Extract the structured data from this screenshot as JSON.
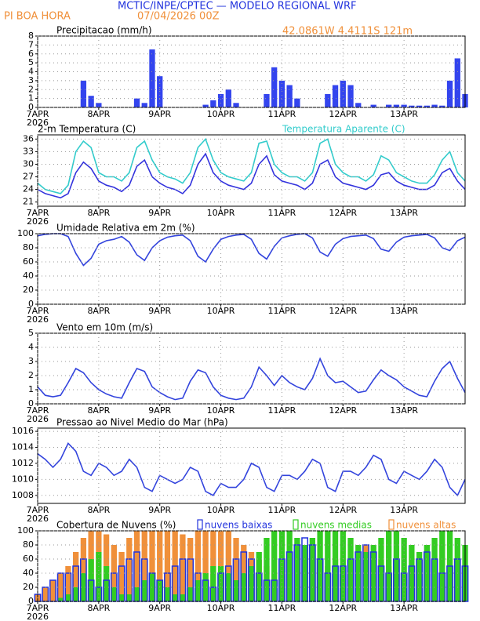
{
  "header": {
    "title": "MCTIC/INPE/CPTEC — MODELO REGIONAL WRF",
    "location": "PI BOA HORA",
    "date": "07/04/2026 00Z",
    "coords": "42.0861W 4.4111S 121m"
  },
  "chart_data": [
    {
      "type": "bar",
      "title": "Precipitacao (mm/h)",
      "year": "2026",
      "grid": true,
      "x": [
        0,
        3,
        6,
        9,
        12,
        15,
        18,
        21,
        24,
        27,
        30,
        33,
        36,
        39,
        42,
        45,
        48,
        51,
        54,
        57,
        60,
        63,
        66,
        69,
        72,
        75,
        78,
        81,
        84,
        87,
        90,
        93,
        96,
        99,
        102,
        105,
        108,
        111,
        114,
        117,
        120,
        123,
        126,
        129,
        132,
        135,
        138,
        141,
        144,
        147,
        150,
        153,
        156,
        159,
        162,
        165,
        168
      ],
      "xlim": [
        0,
        168
      ],
      "xticks": [
        {
          "value": 0,
          "label": "7APR"
        },
        {
          "value": 24,
          "label": "8APR"
        },
        {
          "value": 48,
          "label": "9APR"
        },
        {
          "value": 72,
          "label": "10APR"
        },
        {
          "value": 96,
          "label": "11APR"
        },
        {
          "value": 120,
          "label": "12APR"
        },
        {
          "value": 144,
          "label": "13APR"
        }
      ],
      "ylim": [
        0,
        8
      ],
      "yticks": [
        0,
        1,
        2,
        3,
        4,
        5,
        6,
        7,
        8
      ],
      "series": [
        {
          "color": "#3344ee",
          "values": [
            0,
            0,
            0,
            0,
            0,
            0,
            3,
            1.3,
            0.5,
            0,
            0,
            0,
            0,
            1,
            0.5,
            6.5,
            3.5,
            0,
            0,
            0,
            0,
            0,
            0.3,
            0.8,
            1.5,
            2,
            0.5,
            0,
            0,
            0,
            1.5,
            4.5,
            3,
            2.5,
            1,
            0,
            0,
            0,
            1.5,
            2.5,
            3,
            2.5,
            0.5,
            0,
            0.3,
            0,
            0.3,
            0.3,
            0.3,
            0.2,
            0.2,
            0.2,
            0.3,
            0.2,
            3,
            5.5,
            1.5
          ]
        }
      ]
    },
    {
      "type": "line",
      "title": "2-m Temperatura (C)",
      "year": "2026",
      "grid": true,
      "x": [
        0,
        3,
        6,
        9,
        12,
        15,
        18,
        21,
        24,
        27,
        30,
        33,
        36,
        39,
        42,
        45,
        48,
        51,
        54,
        57,
        60,
        63,
        66,
        69,
        72,
        75,
        78,
        81,
        84,
        87,
        90,
        93,
        96,
        99,
        102,
        105,
        108,
        111,
        114,
        117,
        120,
        123,
        126,
        129,
        132,
        135,
        138,
        141,
        144,
        147,
        150,
        153,
        156,
        159,
        162,
        165,
        168
      ],
      "xlim": [
        0,
        168
      ],
      "xticks": [
        {
          "value": 0,
          "label": "7APR"
        },
        {
          "value": 24,
          "label": "8APR"
        },
        {
          "value": 48,
          "label": "9APR"
        },
        {
          "value": 72,
          "label": "10APR"
        },
        {
          "value": 96,
          "label": "11APR"
        },
        {
          "value": 120,
          "label": "12APR"
        },
        {
          "value": 144,
          "label": "13APR"
        }
      ],
      "ylim": [
        20,
        37
      ],
      "yticks": [
        21,
        24,
        27,
        30,
        33,
        36
      ],
      "series": [
        {
          "color": "#3333dd",
          "values": [
            24,
            23,
            22.5,
            22,
            23,
            28,
            30.5,
            29,
            26,
            25,
            24.5,
            23.5,
            25,
            29.5,
            31,
            27,
            25.5,
            24.5,
            24,
            23,
            25,
            30,
            32.5,
            28,
            26,
            25,
            24.5,
            24,
            25.5,
            30,
            32,
            27.5,
            26,
            25.5,
            25,
            24,
            25.5,
            30,
            31,
            27,
            25.5,
            25,
            24.5,
            24,
            25,
            27.5,
            28,
            26,
            25,
            24.5,
            24,
            24,
            25,
            28,
            29,
            26,
            24
          ]
        },
        {
          "name": "Temperatura Aparente (C)",
          "color": "#33cccc",
          "values": [
            25.5,
            24,
            23.5,
            23,
            25,
            33,
            35.5,
            34,
            28,
            27,
            27,
            26,
            28,
            34,
            35.5,
            31,
            28,
            27,
            26.5,
            25.5,
            28,
            34,
            36,
            31,
            28,
            27,
            26.5,
            26,
            28,
            35,
            35.5,
            30,
            28,
            27,
            27,
            26,
            28,
            35,
            36,
            30,
            28,
            27,
            27,
            26,
            27.5,
            32,
            31,
            28,
            27,
            26,
            25.5,
            25.5,
            27.5,
            31,
            33,
            28,
            26
          ]
        }
      ]
    },
    {
      "type": "line",
      "title": "Umidade Relativa em 2m (%)",
      "year": "2026",
      "grid": true,
      "x": [
        0,
        3,
        6,
        9,
        12,
        15,
        18,
        21,
        24,
        27,
        30,
        33,
        36,
        39,
        42,
        45,
        48,
        51,
        54,
        57,
        60,
        63,
        66,
        69,
        72,
        75,
        78,
        81,
        84,
        87,
        90,
        93,
        96,
        99,
        102,
        105,
        108,
        111,
        114,
        117,
        120,
        123,
        126,
        129,
        132,
        135,
        138,
        141,
        144,
        147,
        150,
        153,
        156,
        159,
        162,
        165,
        168
      ],
      "xlim": [
        0,
        168
      ],
      "xticks": [
        {
          "value": 0,
          "label": "7APR"
        },
        {
          "value": 24,
          "label": "8APR"
        },
        {
          "value": 48,
          "label": "9APR"
        },
        {
          "value": 72,
          "label": "10APR"
        },
        {
          "value": 96,
          "label": "11APR"
        },
        {
          "value": 120,
          "label": "12APR"
        },
        {
          "value": 144,
          "label": "13APR"
        }
      ],
      "ylim": [
        0,
        100
      ],
      "yticks": [
        0,
        20,
        40,
        60,
        80,
        100
      ],
      "series": [
        {
          "color": "#3344dd",
          "values": [
            97,
            99,
            100,
            100,
            96,
            72,
            55,
            65,
            85,
            90,
            92,
            96,
            88,
            70,
            62,
            80,
            90,
            95,
            97,
            98,
            90,
            68,
            60,
            78,
            92,
            96,
            98,
            99,
            92,
            72,
            64,
            82,
            94,
            97,
            99,
            100,
            94,
            74,
            68,
            85,
            93,
            96,
            97,
            98,
            93,
            78,
            75,
            88,
            95,
            97,
            98,
            99,
            94,
            80,
            76,
            90,
            95
          ]
        }
      ]
    },
    {
      "type": "line",
      "title": "Vento em 10m (m/s)",
      "year": "2026",
      "grid": true,
      "x": [
        0,
        3,
        6,
        9,
        12,
        15,
        18,
        21,
        24,
        27,
        30,
        33,
        36,
        39,
        42,
        45,
        48,
        51,
        54,
        57,
        60,
        63,
        66,
        69,
        72,
        75,
        78,
        81,
        84,
        87,
        90,
        93,
        96,
        99,
        102,
        105,
        108,
        111,
        114,
        117,
        120,
        123,
        126,
        129,
        132,
        135,
        138,
        141,
        144,
        147,
        150,
        153,
        156,
        159,
        162,
        165,
        168
      ],
      "xlim": [
        0,
        168
      ],
      "xticks": [
        {
          "value": 0,
          "label": "7APR"
        },
        {
          "value": 24,
          "label": "8APR"
        },
        {
          "value": 48,
          "label": "9APR"
        },
        {
          "value": 72,
          "label": "10APR"
        },
        {
          "value": 96,
          "label": "11APR"
        },
        {
          "value": 120,
          "label": "12APR"
        },
        {
          "value": 144,
          "label": "13APR"
        }
      ],
      "ylim": [
        0,
        5
      ],
      "yticks": [
        0,
        1,
        2,
        3,
        4,
        5
      ],
      "series": [
        {
          "color": "#3344dd",
          "values": [
            1.2,
            0.6,
            0.5,
            0.6,
            1.5,
            2.5,
            2.2,
            1.5,
            1.0,
            0.7,
            0.5,
            0.4,
            1.5,
            2.5,
            2.3,
            1.2,
            0.8,
            0.5,
            0.3,
            0.4,
            1.6,
            2.4,
            2.2,
            1.2,
            0.6,
            0.4,
            0.3,
            0.4,
            1.2,
            2.6,
            2.0,
            1.3,
            2.0,
            1.5,
            1.2,
            1.0,
            1.8,
            3.2,
            2.0,
            1.5,
            1.6,
            1.2,
            0.8,
            0.9,
            1.7,
            2.4,
            2.0,
            1.7,
            1.2,
            0.9,
            0.6,
            0.5,
            1.6,
            2.5,
            3.0,
            1.8,
            0.8
          ]
        }
      ]
    },
    {
      "type": "line",
      "title": "Pressao ao Nivel Medio do Mar (hPa)",
      "year": "2026",
      "grid": true,
      "x": [
        0,
        3,
        6,
        9,
        12,
        15,
        18,
        21,
        24,
        27,
        30,
        33,
        36,
        39,
        42,
        45,
        48,
        51,
        54,
        57,
        60,
        63,
        66,
        69,
        72,
        75,
        78,
        81,
        84,
        87,
        90,
        93,
        96,
        99,
        102,
        105,
        108,
        111,
        114,
        117,
        120,
        123,
        126,
        129,
        132,
        135,
        138,
        141,
        144,
        147,
        150,
        153,
        156,
        159,
        162,
        165,
        168
      ],
      "xlim": [
        0,
        168
      ],
      "xticks": [
        {
          "value": 0,
          "label": "7APR"
        },
        {
          "value": 24,
          "label": "8APR"
        },
        {
          "value": 48,
          "label": "9APR"
        },
        {
          "value": 72,
          "label": "10APR"
        },
        {
          "value": 96,
          "label": "11APR"
        },
        {
          "value": 120,
          "label": "12APR"
        },
        {
          "value": 144,
          "label": "13APR"
        }
      ],
      "ylim": [
        1007,
        1016.4
      ],
      "yticks": [
        1008,
        1010,
        1012,
        1014,
        1016
      ],
      "series": [
        {
          "color": "#3344dd",
          "values": [
            1013.2,
            1012.5,
            1011.5,
            1012.5,
            1014.5,
            1013.5,
            1011,
            1010.5,
            1012,
            1011.5,
            1010.5,
            1011,
            1012.5,
            1011.5,
            1009,
            1008.5,
            1010.5,
            1010,
            1009.5,
            1010,
            1011.5,
            1011,
            1008.5,
            1008,
            1009.5,
            1009,
            1009,
            1010,
            1012,
            1011.5,
            1009,
            1008.5,
            1010.5,
            1010.5,
            1010,
            1011,
            1012.5,
            1012,
            1009,
            1008.5,
            1011,
            1011,
            1010.5,
            1011.5,
            1013,
            1012.5,
            1010,
            1009.5,
            1011,
            1010.5,
            1010,
            1011,
            1012.5,
            1011.5,
            1009,
            1008,
            1010
          ]
        }
      ]
    },
    {
      "type": "bar",
      "title": "Cobertura de Nuvens (%)",
      "year": "2026",
      "grid": true,
      "x": [
        0,
        3,
        6,
        9,
        12,
        15,
        18,
        21,
        24,
        27,
        30,
        33,
        36,
        39,
        42,
        45,
        48,
        51,
        54,
        57,
        60,
        63,
        66,
        69,
        72,
        75,
        78,
        81,
        84,
        87,
        90,
        93,
        96,
        99,
        102,
        105,
        108,
        111,
        114,
        117,
        120,
        123,
        126,
        129,
        132,
        135,
        138,
        141,
        144,
        147,
        150,
        153,
        156,
        159,
        162,
        165,
        168
      ],
      "xlim": [
        0,
        168
      ],
      "xticks": [
        {
          "value": 0,
          "label": "7APR"
        },
        {
          "value": 24,
          "label": "8APR"
        },
        {
          "value": 48,
          "label": "9APR"
        },
        {
          "value": 72,
          "label": "10APR"
        },
        {
          "value": 96,
          "label": "11APR"
        },
        {
          "value": 120,
          "label": "12APR"
        },
        {
          "value": 144,
          "label": "13APR"
        }
      ],
      "ylim": [
        0,
        100
      ],
      "yticks": [
        0,
        20,
        40,
        60,
        80,
        100
      ],
      "series": [
        {
          "name": "nuvens baixas",
          "color": "#2233dd",
          "fill": false,
          "values": [
            10,
            20,
            30,
            40,
            40,
            50,
            60,
            30,
            20,
            30,
            40,
            50,
            60,
            70,
            60,
            40,
            30,
            40,
            50,
            60,
            60,
            40,
            30,
            20,
            40,
            50,
            60,
            70,
            60,
            40,
            30,
            30,
            60,
            70,
            80,
            90,
            80,
            60,
            40,
            50,
            50,
            60,
            70,
            80,
            70,
            50,
            40,
            60,
            40,
            50,
            60,
            70,
            60,
            40,
            50,
            60,
            50
          ]
        },
        {
          "name": "nuvens medias",
          "color": "#33cc22",
          "fill": true,
          "values": [
            0,
            0,
            0,
            5,
            10,
            20,
            40,
            60,
            70,
            50,
            20,
            10,
            10,
            20,
            30,
            40,
            30,
            20,
            10,
            10,
            20,
            30,
            40,
            50,
            50,
            40,
            30,
            40,
            50,
            70,
            90,
            100,
            100,
            100,
            90,
            80,
            90,
            100,
            100,
            100,
            100,
            90,
            80,
            70,
            80,
            90,
            100,
            100,
            90,
            80,
            70,
            80,
            90,
            100,
            100,
            90,
            80
          ]
        },
        {
          "name": "nuvens altas",
          "color": "#f0903a",
          "fill": true,
          "values": [
            10,
            20,
            30,
            40,
            50,
            70,
            90,
            100,
            100,
            95,
            80,
            70,
            90,
            100,
            100,
            100,
            100,
            100,
            100,
            95,
            90,
            100,
            100,
            100,
            100,
            100,
            90,
            80,
            70,
            60,
            50,
            40,
            30,
            40,
            50,
            60,
            70,
            60,
            50,
            60,
            50,
            60,
            70,
            80,
            70,
            60,
            50,
            40,
            40,
            50,
            60,
            70,
            60,
            80,
            60,
            50,
            30
          ]
        }
      ]
    }
  ]
}
